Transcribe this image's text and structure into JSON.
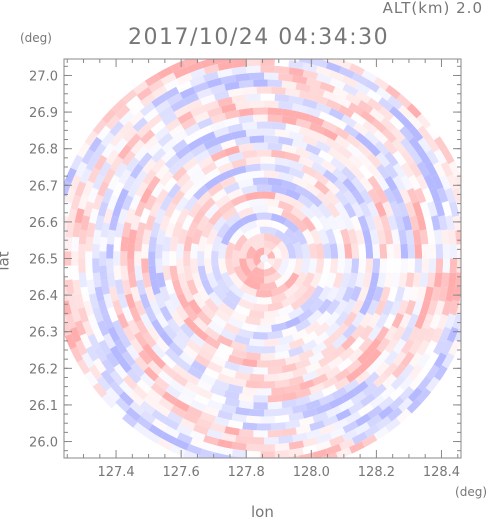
{
  "header": {
    "alt_label": "ALT(km) 2.0",
    "timestamp": "2017/10/24 04:34:30"
  },
  "chart_data": {
    "type": "heatmap",
    "title": "2017/10/24 04:34:30",
    "subtitle": "ALT(km) 2.0",
    "xlabel": "lon",
    "ylabel": "lat",
    "x_unit": "(deg)",
    "y_unit": "(deg)",
    "xlim": [
      127.24,
      128.46
    ],
    "ylim": [
      25.955,
      27.045
    ],
    "x_ticks": [
      "127.4",
      "127.6",
      "127.8",
      "128.0",
      "128.2",
      "128.4"
    ],
    "y_ticks": [
      "26.0",
      "26.1",
      "26.2",
      "26.3",
      "26.4",
      "26.5",
      "26.6",
      "26.7",
      "26.8",
      "26.9",
      "27.0"
    ],
    "center": {
      "lon": 127.855,
      "lat": 26.5
    },
    "coverage": "circular",
    "colors": {
      "positive": "#ff9e9e",
      "negative": "#a8adff",
      "neutral": "#f4f4ff",
      "axis": "#888888",
      "text": "#777777"
    }
  }
}
